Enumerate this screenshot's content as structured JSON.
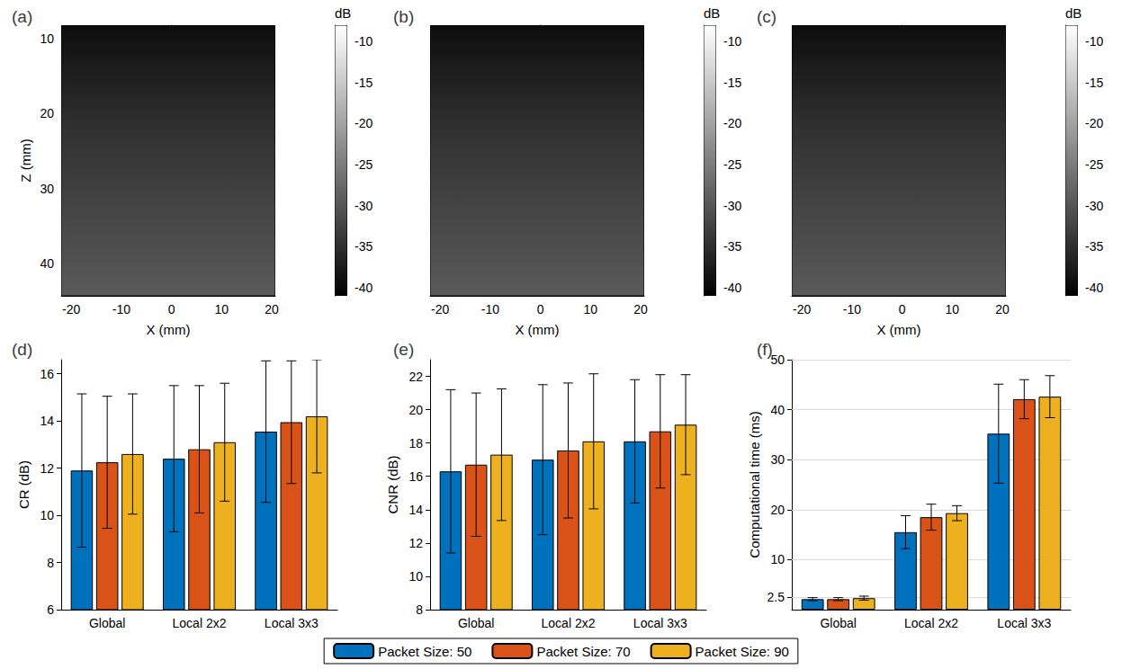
{
  "chart_data": [
    {
      "type": "image",
      "title": "(a)",
      "x_label": "X (mm)",
      "y_label": "Z (mm)",
      "xlim": [
        -22,
        20.7
      ],
      "xticks": [
        -20,
        -10,
        0,
        10,
        20
      ],
      "ylim": [
        8.2,
        44.3
      ],
      "yticks": [
        10,
        20,
        30,
        40
      ],
      "colorbar": {
        "label": "dB",
        "range": [
          -41,
          -8
        ],
        "ticks": [
          -10,
          -15,
          -20,
          -25,
          -30,
          -35,
          -40
        ]
      }
    },
    {
      "type": "image",
      "title": "(b)",
      "x_label": "X (mm)",
      "xlim": [
        -22,
        20.7
      ],
      "xticks": [
        -20,
        -10,
        0,
        10,
        20
      ],
      "ylim": [
        8.2,
        44.3
      ],
      "tick_labels": "x",
      "colorbar": {
        "label": "dB",
        "range": [
          -41,
          -8
        ],
        "ticks": [
          -10,
          -15,
          -20,
          -25,
          -30,
          -35,
          -40
        ]
      }
    },
    {
      "type": "image",
      "title": "(c)",
      "x_label": "X (mm)",
      "xlim": [
        -22,
        20.7
      ],
      "xticks": [
        -20,
        -10,
        0,
        10,
        20
      ],
      "ylim": [
        8.2,
        44.3
      ],
      "tick_labels": "x",
      "colorbar": {
        "label": "dB",
        "range": [
          -41,
          -8
        ],
        "ticks": [
          -10,
          -15,
          -20,
          -25,
          -30,
          -35,
          -40
        ]
      }
    },
    {
      "type": "bar",
      "title": "(d)",
      "y_label": "CR (dB)",
      "categories": [
        "Global",
        "Local 2x2",
        "Local 3x3"
      ],
      "ylim": [
        6,
        16.6
      ],
      "yticks": [
        6,
        8,
        10,
        12,
        14,
        16
      ],
      "grid": false,
      "legend": "bottom",
      "series": [
        {
          "name": "Packet Size: 50",
          "color": "#0072bd",
          "values": [
            11.9,
            12.4,
            13.55
          ],
          "errors": [
            3.25,
            3.1,
            3.0
          ]
        },
        {
          "name": "Packet Size: 70",
          "color": "#d95319",
          "values": [
            12.25,
            12.8,
            13.95
          ],
          "errors": [
            2.8,
            2.7,
            2.6
          ]
        },
        {
          "name": "Packet Size: 90",
          "color": "#edb120",
          "values": [
            12.6,
            13.1,
            14.2
          ],
          "errors": [
            2.55,
            2.5,
            2.4
          ]
        }
      ]
    },
    {
      "type": "bar",
      "title": "(e)",
      "y_label": "CNR (dB)",
      "categories": [
        "Global",
        "Local 2x2",
        "Local 3x3"
      ],
      "ylim": [
        8,
        23
      ],
      "yticks": [
        8,
        10,
        12,
        14,
        16,
        18,
        20,
        22
      ],
      "grid": false,
      "legend": "bottom",
      "series": [
        {
          "name": "Packet Size: 50",
          "color": "#0072bd",
          "values": [
            16.3,
            17.0,
            18.1
          ],
          "errors": [
            4.9,
            4.5,
            3.7
          ]
        },
        {
          "name": "Packet Size: 70",
          "color": "#d95319",
          "values": [
            16.7,
            17.55,
            18.7
          ],
          "errors": [
            4.3,
            4.05,
            3.4
          ]
        },
        {
          "name": "Packet Size: 90",
          "color": "#edb120",
          "values": [
            17.3,
            18.1,
            19.1
          ],
          "errors": [
            3.95,
            4.05,
            3.0
          ]
        }
      ]
    },
    {
      "type": "bar",
      "title": "(f)",
      "y_label": "Computational time (ms)",
      "categories": [
        "Global",
        "Local 2x2",
        "Local 3x3"
      ],
      "ylim": [
        0,
        50
      ],
      "yticks": [
        2.5,
        10,
        20,
        30,
        40,
        50
      ],
      "grid": true,
      "legend": "bottom",
      "series": [
        {
          "name": "Packet Size: 50",
          "color": "#0072bd",
          "values": [
            2.1,
            15.5,
            35.2
          ],
          "errors": [
            0.3,
            3.3,
            9.9
          ]
        },
        {
          "name": "Packet Size: 70",
          "color": "#d95319",
          "values": [
            2.1,
            18.5,
            42.1
          ],
          "errors": [
            0.3,
            2.6,
            3.9
          ]
        },
        {
          "name": "Packet Size: 90",
          "color": "#edb120",
          "values": [
            2.3,
            19.3,
            42.6
          ],
          "errors": [
            0.4,
            1.5,
            4.2
          ]
        }
      ]
    }
  ]
}
